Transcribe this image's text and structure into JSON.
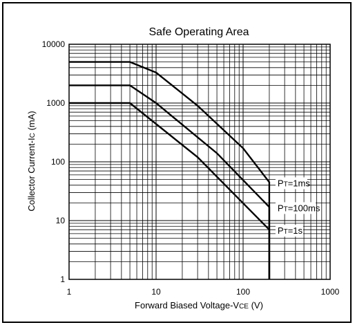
{
  "chart_data": {
    "type": "line",
    "title": "Safe Operating Area",
    "xlabel": {
      "main": "Forward Biased Voltage-V",
      "sub": "CE",
      "unit": " (V)"
    },
    "ylabel": {
      "main": "Collector Current-I",
      "sub": "C",
      "unit": " (mA)"
    },
    "x_scale": "log",
    "y_scale": "log",
    "xlim": [
      1,
      1000
    ],
    "ylim": [
      1,
      10000
    ],
    "x_ticks": [
      "1",
      "10",
      "100",
      "1000"
    ],
    "y_ticks": [
      "1",
      "10",
      "100",
      "1000",
      "10000"
    ],
    "grid": true,
    "colors": {
      "line": "#000000",
      "grid": "#000000",
      "background": "#ffffff"
    },
    "series": [
      {
        "label_main": "P",
        "label_sub": "T",
        "label_rest": "=1ms",
        "points": [
          [
            1,
            5000
          ],
          [
            5,
            5000
          ],
          [
            10,
            3300
          ],
          [
            30,
            900
          ],
          [
            100,
            170
          ],
          [
            200,
            45
          ],
          [
            200,
            1
          ]
        ]
      },
      {
        "label_main": "P",
        "label_sub": "T",
        "label_rest": "=100ms",
        "points": [
          [
            1,
            2000
          ],
          [
            5,
            2000
          ],
          [
            10,
            1000
          ],
          [
            50,
            140
          ],
          [
            200,
            17
          ],
          [
            200,
            1
          ]
        ]
      },
      {
        "label_main": "P",
        "label_sub": "T",
        "label_rest": "=1s",
        "points": [
          [
            1,
            1000
          ],
          [
            5,
            1000
          ],
          [
            30,
            120
          ],
          [
            200,
            7
          ],
          [
            200,
            1
          ]
        ]
      }
    ]
  }
}
